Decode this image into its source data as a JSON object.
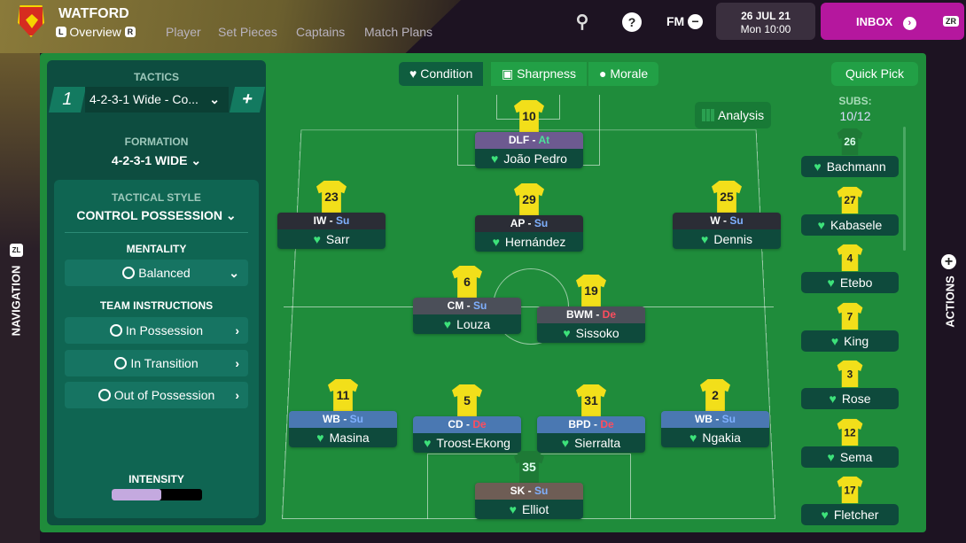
{
  "header": {
    "club": "WATFORD",
    "key_left": "L",
    "key_right": "R",
    "key_zr": "ZR",
    "tabs": [
      "Overview",
      "Player",
      "Set Pieces",
      "Captains",
      "Match Plans"
    ],
    "fm": "FM",
    "date": "26 JUL 21",
    "time": "Mon 10:00",
    "inbox": "INBOX"
  },
  "tactics": {
    "title": "TACTICS",
    "slot": "1",
    "name": "4-2-3-1 Wide - Co...",
    "formation_label": "FORMATION",
    "formation": "4-2-3-1 WIDE",
    "style_label": "TACTICAL STYLE",
    "style": "CONTROL POSSESSION",
    "mentality_label": "MENTALITY",
    "mentality": "Balanced",
    "ti_label": "TEAM INSTRUCTIONS",
    "instructions": [
      "In Possession",
      "In Transition",
      "Out of Possession"
    ],
    "intensity_label": "INTENSITY",
    "intensity": 0.55
  },
  "toolbar": {
    "condition": "Condition",
    "sharpness": "Sharpness",
    "morale": "Morale",
    "analysis": "Analysis",
    "quick_pick": "Quick Pick"
  },
  "subs": {
    "label": "SUBS:",
    "count": "10/12",
    "players": [
      {
        "num": "26",
        "name": "Bachmann",
        "gk": true
      },
      {
        "num": "27",
        "name": "Kabasele"
      },
      {
        "num": "4",
        "name": "Etebo"
      },
      {
        "num": "7",
        "name": "King"
      },
      {
        "num": "3",
        "name": "Rose"
      },
      {
        "num": "12",
        "name": "Sema"
      },
      {
        "num": "17",
        "name": "Fletcher"
      }
    ]
  },
  "players": [
    {
      "num": "10",
      "role": "DLF",
      "duty": "At",
      "name": "João Pedro",
      "line": "att"
    },
    {
      "num": "23",
      "role": "IW",
      "duty": "Su",
      "name": "Sarr",
      "line": "am"
    },
    {
      "num": "29",
      "role": "AP",
      "duty": "Su",
      "name": "Hernández",
      "line": "am"
    },
    {
      "num": "25",
      "role": "W",
      "duty": "Su",
      "name": "Dennis",
      "line": "am"
    },
    {
      "num": "6",
      "role": "CM",
      "duty": "Su",
      "name": "Louza",
      "line": "mid"
    },
    {
      "num": "19",
      "role": "BWM",
      "duty": "De",
      "name": "Sissoko",
      "line": "mid"
    },
    {
      "num": "11",
      "role": "WB",
      "duty": "Su",
      "name": "Masina",
      "line": "def"
    },
    {
      "num": "5",
      "role": "CD",
      "duty": "De",
      "name": "Troost-Ekong",
      "line": "def"
    },
    {
      "num": "31",
      "role": "BPD",
      "duty": "De",
      "name": "Sierralta",
      "line": "def"
    },
    {
      "num": "2",
      "role": "WB",
      "duty": "Su",
      "name": "Ngakia",
      "line": "def"
    },
    {
      "num": "35",
      "role": "SK",
      "duty": "Su",
      "name": "Elliot",
      "line": "gk"
    }
  ],
  "side": {
    "navigation": "NAVIGATION",
    "actions": "ACTIONS",
    "zl": "ZL"
  },
  "colors": {
    "att": "#6d5a90",
    "am": "#2b2d36",
    "mid": "#4b4f59",
    "def": "#4a78b2",
    "gk": "#6e5d55",
    "Su": "#7fb0ff",
    "De": "#ff4d5e",
    "At": "#4de09a",
    "inbox": "#b5179e"
  }
}
